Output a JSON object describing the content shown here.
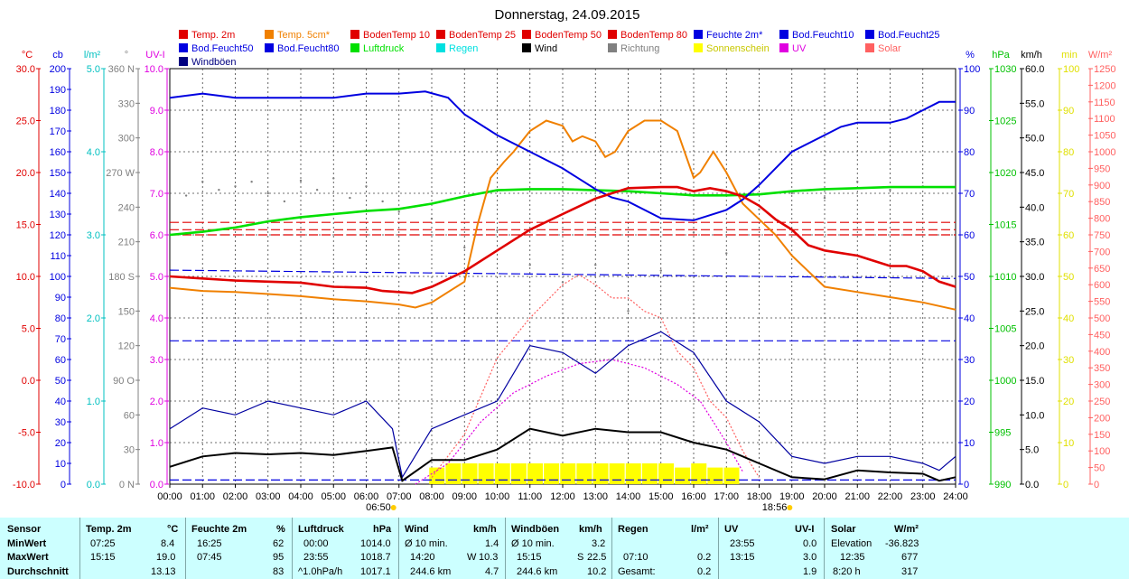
{
  "title": "Donnerstag, 24.09.2015",
  "colors": {
    "temp": "#e00000",
    "temp5": "#f08000",
    "feucht": "#0000e0",
    "luftdruck": "#00e000",
    "regen": "#00e0e0",
    "wind": "#000000",
    "richtung": "#808080",
    "sonne": "#ffff00",
    "uv": "#e000e0",
    "solar": "#ff6060",
    "grid": "#404040",
    "stats_bg": "#ccffff"
  },
  "legend": [
    {
      "label": "Temp. 2m",
      "color": "#e00000"
    },
    {
      "label": "Temp. 5cm*",
      "color": "#f08000"
    },
    {
      "label": "BodenTemp 10",
      "color": "#e00000"
    },
    {
      "label": "BodenTemp 25",
      "color": "#e00000"
    },
    {
      "label": "BodenTemp 50",
      "color": "#e00000"
    },
    {
      "label": "BodenTemp 80",
      "color": "#e00000"
    },
    {
      "label": "Feuchte 2m*",
      "color": "#0000e0"
    },
    {
      "label": "Bod.Feucht10",
      "color": "#0000e0"
    },
    {
      "label": "Bod.Feucht25",
      "color": "#0000e0"
    },
    {
      "label": "Bod.Feucht50",
      "color": "#0000e0"
    },
    {
      "label": "Bod.Feucht80",
      "color": "#0000e0"
    },
    {
      "label": "Luftdruck",
      "color": "#00e000"
    },
    {
      "label": "Regen",
      "color": "#00e0e0"
    },
    {
      "label": "Wind",
      "color": "#000000"
    },
    {
      "label": "Richtung",
      "color": "#808080"
    },
    {
      "label": "Sonnenschein",
      "color": "#ffff00"
    },
    {
      "label": "UV",
      "color": "#e000e0"
    },
    {
      "label": "Solar",
      "color": "#ff6060"
    },
    {
      "label": "Windböen",
      "color": "#000080"
    }
  ],
  "chart_data": {
    "type": "line",
    "title": "Donnerstag, 24.09.2015",
    "x_ticks": [
      "00:00",
      "01:00",
      "02:00",
      "03:00",
      "04:00",
      "05:00",
      "06:00",
      "07:00",
      "08:00",
      "09:00",
      "10:00",
      "11:00",
      "12:00",
      "13:00",
      "14:00",
      "15:00",
      "16:00",
      "17:00",
      "18:00",
      "19:00",
      "20:00",
      "21:00",
      "22:00",
      "23:00",
      "24:00"
    ],
    "xlim_hours": [
      0,
      24
    ],
    "sunrise": "06:50",
    "sunset": "18:56",
    "axes": [
      {
        "unit": "°C",
        "color": "#e00000",
        "min": -10,
        "max": 30,
        "ticks": [
          "-10.0",
          "-5.0",
          "0.0",
          "5.0",
          "10.0",
          "15.0",
          "20.0",
          "25.0",
          "30.0"
        ]
      },
      {
        "unit": "cb",
        "color": "#0000e0",
        "min": 0,
        "max": 200,
        "ticks": [
          "0",
          "10",
          "20",
          "30",
          "40",
          "50",
          "60",
          "70",
          "80",
          "90",
          "100",
          "110",
          "120",
          "130",
          "140",
          "150",
          "160",
          "170",
          "180",
          "190",
          "200"
        ]
      },
      {
        "unit": "l/m²",
        "color": "#00c0c0",
        "min": 0,
        "max": 5,
        "ticks": [
          "0.0",
          "1.0",
          "2.0",
          "3.0",
          "4.0",
          "5.0"
        ]
      },
      {
        "unit": "°",
        "color": "#808080",
        "min": 0,
        "max": 360,
        "ticks": [
          "0 N",
          "30",
          "60",
          "90 O",
          "120",
          "150",
          "180 S",
          "210",
          "240",
          "270 W",
          "300",
          "330",
          "360 N"
        ]
      },
      {
        "unit": "UV-I",
        "color": "#e000e0",
        "min": 0,
        "max": 10,
        "ticks": [
          "0.0",
          "1.0",
          "2.0",
          "3.0",
          "4.0",
          "5.0",
          "6.0",
          "7.0",
          "8.0",
          "9.0",
          "10.0"
        ]
      },
      {
        "unit": "%",
        "color": "#0000e0",
        "min": 0,
        "max": 100,
        "ticks": [
          "0",
          "10",
          "20",
          "30",
          "40",
          "50",
          "60",
          "70",
          "80",
          "90",
          "100"
        ]
      },
      {
        "unit": "hPa",
        "color": "#00c000",
        "min": 990,
        "max": 1030,
        "ticks": [
          "990",
          "995",
          "1000",
          "1005",
          "1010",
          "1015",
          "1020",
          "1025",
          "1030"
        ]
      },
      {
        "unit": "km/h",
        "color": "#000000",
        "min": 0,
        "max": 60,
        "ticks": [
          "0.0",
          "5.0",
          "10.0",
          "15.0",
          "20.0",
          "25.0",
          "30.0",
          "35.0",
          "40.0",
          "45.0",
          "50.0",
          "55.0",
          "60.0"
        ]
      },
      {
        "unit": "min",
        "color": "#e0e000",
        "min": 0,
        "max": 100,
        "ticks": [
          "0",
          "10",
          "20",
          "30",
          "40",
          "50",
          "60",
          "70",
          "80",
          "90",
          "100"
        ]
      },
      {
        "unit": "W/m²",
        "color": "#ff6060",
        "min": 0,
        "max": 1250,
        "ticks": [
          "0",
          "50",
          "100",
          "150",
          "200",
          "250",
          "300",
          "350",
          "400",
          "450",
          "500",
          "550",
          "600",
          "650",
          "700",
          "750",
          "800",
          "850",
          "900",
          "950",
          "1000",
          "1050",
          "1100",
          "1150",
          "1200",
          "1250"
        ]
      }
    ],
    "series": [
      {
        "name": "Temp. 2m",
        "unit": "°C",
        "color": "#e00000",
        "x": [
          0,
          1,
          2,
          3,
          4,
          5,
          6,
          6.5,
          7,
          7.4,
          8,
          9,
          10,
          11,
          12,
          13,
          14,
          15,
          15.5,
          16,
          16.5,
          17,
          17.5,
          18,
          18.5,
          19,
          19.5,
          20,
          21,
          21.5,
          22,
          22.5,
          23,
          23.5,
          24
        ],
        "y": [
          10.0,
          9.8,
          9.6,
          9.5,
          9.4,
          9.0,
          8.9,
          8.6,
          8.5,
          8.4,
          9.0,
          10.5,
          12.5,
          14.5,
          16.0,
          17.5,
          18.5,
          18.6,
          18.6,
          18.2,
          18.5,
          18.2,
          17.7,
          16.8,
          15.5,
          14.5,
          13.0,
          12.5,
          12.0,
          11.5,
          11.0,
          11.0,
          10.5,
          9.5,
          9.0
        ]
      },
      {
        "name": "Temp. 5cm*",
        "unit": "°C",
        "color": "#f08000",
        "x": [
          0,
          1,
          2,
          3,
          4,
          5,
          6,
          7,
          7.5,
          8,
          8.5,
          9,
          9.4,
          9.8,
          10.2,
          10.5,
          11,
          11.5,
          12,
          12.3,
          12.6,
          13,
          13.3,
          13.6,
          14,
          14.5,
          15,
          15.5,
          16,
          16.2,
          16.6,
          17,
          17.5,
          18,
          18.5,
          19,
          19.5,
          20,
          21,
          22,
          23,
          24
        ],
        "y": [
          8.9,
          8.6,
          8.5,
          8.3,
          8.1,
          7.8,
          7.6,
          7.3,
          7.0,
          7.5,
          8.5,
          9.5,
          15,
          19.5,
          21.0,
          22.0,
          24,
          25,
          24.5,
          23,
          23.5,
          23,
          21.5,
          22,
          24,
          25,
          25,
          24,
          19.5,
          20,
          22,
          20,
          17.0,
          15.5,
          14.0,
          12.0,
          10.5,
          9.0,
          8.5,
          8.0,
          7.5,
          6.8
        ]
      },
      {
        "name": "Feuchte 2m*",
        "unit": "%",
        "color": "#0000e0",
        "x": [
          0,
          1,
          2,
          3,
          4,
          5,
          6,
          7,
          7.8,
          8.5,
          9,
          10,
          11,
          12,
          13,
          13.5,
          14,
          14.5,
          15,
          16,
          17,
          17.5,
          18,
          18.5,
          19,
          20,
          20.5,
          21,
          22,
          22.5,
          23,
          23.5,
          24
        ],
        "y": [
          93,
          94,
          93,
          93,
          93,
          93,
          94,
          94,
          94.5,
          93,
          89,
          84,
          80,
          76,
          71,
          69,
          68,
          66,
          64,
          63.5,
          66,
          68.5,
          72,
          76,
          80,
          84,
          86,
          87,
          87,
          88,
          90,
          92,
          92
        ]
      },
      {
        "name": "Luftdruck",
        "unit": "hPa",
        "color": "#00e000",
        "x": [
          0,
          1,
          2,
          3,
          4,
          5,
          6,
          7,
          8,
          9,
          10,
          11,
          12,
          13,
          14,
          15,
          16,
          17,
          18,
          19,
          20,
          21,
          22,
          23,
          24
        ],
        "y": [
          1014.0,
          1014.3,
          1014.7,
          1015.3,
          1015.7,
          1016.0,
          1016.3,
          1016.5,
          1017.0,
          1017.7,
          1018.3,
          1018.4,
          1018.4,
          1018.3,
          1018.2,
          1018.0,
          1017.8,
          1017.8,
          1017.9,
          1018.2,
          1018.4,
          1018.5,
          1018.6,
          1018.6,
          1018.6
        ]
      },
      {
        "name": "BodenTemp 10",
        "unit": "°C",
        "color": "#e00000",
        "x": [
          0,
          24
        ],
        "y": [
          15.2,
          15.2
        ]
      },
      {
        "name": "BodenTemp 25",
        "unit": "°C",
        "color": "#e00000",
        "x": [
          0,
          24
        ],
        "y": [
          14.0,
          14.0
        ]
      },
      {
        "name": "BodenTemp 50",
        "unit": "°C",
        "color": "#e00000",
        "x": [
          0,
          24
        ],
        "y": [
          14.5,
          14.5
        ]
      },
      {
        "name": "Bod.Feucht10",
        "unit": "cb",
        "color": "#0000e0",
        "x": [
          0,
          24
        ],
        "y": [
          103,
          99
        ]
      },
      {
        "name": "Bod.Feucht25",
        "unit": "cb",
        "color": "#0000e0",
        "x": [
          0,
          24
        ],
        "y": [
          69,
          69
        ]
      },
      {
        "name": "Bod.Feucht50",
        "unit": "cb",
        "color": "#0000e0",
        "x": [
          0,
          24
        ],
        "y": [
          2,
          2
        ]
      },
      {
        "name": "Wind",
        "unit": "km/h",
        "color": "#000000",
        "x": [
          0,
          1,
          2,
          3,
          4,
          5,
          6,
          6.8,
          7.1,
          8,
          9,
          10,
          11,
          12,
          13,
          14,
          15,
          16,
          17,
          18,
          19,
          20,
          21,
          22,
          23,
          23.5,
          24
        ],
        "y": [
          2.5,
          4.0,
          4.5,
          4.3,
          4.5,
          4.2,
          4.8,
          5.3,
          0.5,
          3.5,
          3.5,
          5.0,
          8.0,
          7.0,
          8.0,
          7.5,
          7.5,
          6.0,
          5.0,
          3.0,
          1.0,
          0.7,
          2.0,
          1.7,
          1.5,
          0.5,
          1.0
        ]
      },
      {
        "name": "Windböen",
        "unit": "km/h",
        "color": "#0000a0",
        "x": [
          0,
          1,
          2,
          3,
          4,
          5,
          6,
          6.8,
          7.1,
          8,
          9,
          10,
          11,
          12,
          13,
          14,
          15,
          16,
          17,
          18,
          19,
          20,
          21,
          22,
          23,
          23.5,
          24
        ],
        "y": [
          8,
          11,
          10,
          12,
          11,
          10,
          12,
          8,
          1,
          8,
          10,
          12,
          20,
          19,
          16,
          20,
          22,
          19,
          12,
          9,
          4,
          3,
          4,
          4,
          3,
          2,
          4
        ]
      },
      {
        "name": "UV",
        "unit": "UV-I",
        "color": "#e000e0",
        "x": [
          7.5,
          8.5,
          9.5,
          10.5,
          11.5,
          12.5,
          13.5,
          14.5,
          15.5,
          16.2,
          17,
          17.5
        ],
        "y": [
          0.0,
          0.5,
          1.5,
          2.2,
          2.6,
          2.9,
          3.0,
          2.8,
          2.4,
          2.0,
          1.0,
          0.3
        ]
      },
      {
        "name": "Solar",
        "unit": "W/m²",
        "color": "#ff6060",
        "x": [
          8,
          9,
          10,
          11,
          12,
          12.5,
          13,
          13.5,
          14,
          14.5,
          15,
          15.5,
          16,
          16.5,
          17,
          17.5,
          18
        ],
        "y": [
          20,
          150,
          380,
          500,
          600,
          630,
          600,
          560,
          560,
          520,
          500,
          400,
          350,
          250,
          200,
          100,
          20
        ]
      },
      {
        "name": "Richtung",
        "unit": "°",
        "color": "#808080",
        "type": "scatter",
        "x": [
          0.5,
          1.0,
          1.5,
          2.0,
          2.5,
          3.0,
          3.5,
          4.0,
          4.5,
          5.0,
          5.5,
          6.0,
          6.5,
          7.0,
          8.0,
          9.0,
          10.0,
          11.0,
          12.0,
          13.0,
          14.0,
          15.0,
          16.0,
          17.0,
          18.0,
          19.0,
          20.0,
          21.0,
          22.0,
          23.0
        ],
        "y": [
          250,
          262,
          255,
          258,
          262,
          252,
          245,
          263,
          255,
          265,
          248,
          258,
          245,
          236,
          230,
          205,
          220,
          190,
          175,
          190,
          150,
          185,
          218,
          200,
          238,
          252,
          248,
          262,
          255,
          258
        ]
      },
      {
        "name": "Sonnenschein",
        "unit": "min",
        "color": "#ffff00",
        "type": "bar",
        "x": [
          8.2,
          8.7,
          9.2,
          9.7,
          10.2,
          10.7,
          11.2,
          11.7,
          12.2,
          12.7,
          13.2,
          13.7,
          14.2,
          14.7,
          15.2,
          15.7,
          16.2,
          16.7,
          17.2
        ],
        "y": [
          4,
          5,
          5,
          5,
          5,
          5,
          5,
          5,
          5,
          5,
          5,
          5,
          5,
          5,
          5,
          4,
          5,
          4,
          4
        ]
      }
    ]
  },
  "stats": {
    "rows": [
      "MinWert",
      "MaxWert",
      "Durchschnitt"
    ],
    "sensor_label": "Sensor",
    "temp": {
      "title": "Temp. 2m",
      "unit": "°C",
      "min_time": "07:25",
      "min": "8.4",
      "max_time": "15:15",
      "max": "19.0",
      "avg": "13.13"
    },
    "feuchte": {
      "title": "Feuchte 2m",
      "unit": "%",
      "min_time": "16:25",
      "min": "62",
      "max_time": "07:45",
      "max": "95",
      "avg": "83"
    },
    "luftdruck": {
      "title": "Luftdruck",
      "unit": "hPa",
      "min_time": "00:00",
      "min": "1014.0",
      "max_time": "23:55",
      "max": "1018.7",
      "avg_label": "^1.0hPa/h",
      "avg": "1017.1"
    },
    "wind": {
      "title": "Wind",
      "unit": "km/h",
      "min_label": "Ø 10 min.",
      "min": "1.4",
      "max_time": "14:20",
      "max_dir": "W",
      "max": "10.3",
      "avg_label": "244.6 km",
      "avg": "4.7"
    },
    "windboeen": {
      "title": "Windböen",
      "unit": "km/h",
      "min_label": "Ø 10 min.",
      "min": "3.2",
      "max_time": "15:15",
      "max_dir": "S",
      "max": "22.5",
      "avg_label": "244.6 km",
      "avg": "10.2"
    },
    "regen": {
      "title": "Regen",
      "unit": "l/m²",
      "max_time": "07:10",
      "max": "0.2",
      "total_label": "Gesamt:",
      "total": "0.2"
    },
    "uv": {
      "title": "UV",
      "unit": "UV-I",
      "min_time": "23:55",
      "min": "0.0",
      "max_time": "13:15",
      "max": "3.0",
      "avg": "1.9"
    },
    "solar": {
      "title": "Solar",
      "unit": "W/m²",
      "min_label": "Elevation",
      "min": "-36.823",
      "max_time": "12:35",
      "max": "677",
      "avg_label": "8:20 h",
      "avg": "317"
    }
  }
}
